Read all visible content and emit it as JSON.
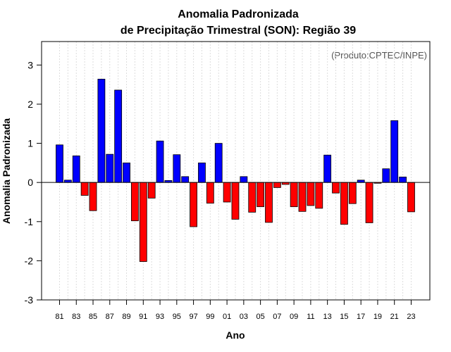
{
  "chart_data": {
    "type": "bar",
    "title": "Anomalia Padronizada",
    "subtitle": "de Precipitação Trimestral (SON): Região 39",
    "xlabel": "Ano",
    "ylabel": "Anomalia Padronizada",
    "annotation": "(Produto:CPTEC/INPE)",
    "ylim": [
      -3,
      3.6
    ],
    "yticks": [
      -3,
      -2,
      -1,
      0,
      1,
      2,
      3
    ],
    "xtick_labels": [
      "81",
      "83",
      "85",
      "87",
      "89",
      "91",
      "93",
      "95",
      "97",
      "99",
      "01",
      "03",
      "05",
      "07",
      "09",
      "11",
      "13",
      "15",
      "17",
      "19",
      "21",
      "23"
    ],
    "positive_color": "#0000ff",
    "negative_color": "#ff0000",
    "categories": [
      "1981",
      "1982",
      "1983",
      "1984",
      "1985",
      "1986",
      "1987",
      "1988",
      "1989",
      "1990",
      "1991",
      "1992",
      "1993",
      "1994",
      "1995",
      "1996",
      "1997",
      "1998",
      "1999",
      "2000",
      "2001",
      "2002",
      "2003",
      "2004",
      "2005",
      "2006",
      "2007",
      "2008",
      "2009",
      "2010",
      "2011",
      "2012",
      "2013",
      "2014",
      "2015",
      "2016",
      "2017",
      "2018",
      "2019",
      "2020",
      "2021",
      "2022",
      "2023"
    ],
    "values": [
      0.96,
      0.06,
      0.68,
      -0.33,
      -0.72,
      2.64,
      0.72,
      2.36,
      0.5,
      -0.98,
      -2.02,
      -0.4,
      1.06,
      0.05,
      0.71,
      0.15,
      -1.13,
      0.5,
      -0.53,
      1.0,
      -0.5,
      -0.94,
      0.15,
      -0.76,
      -0.62,
      -1.02,
      -0.13,
      -0.05,
      -0.62,
      -0.74,
      -0.59,
      -0.66,
      0.7,
      -0.27,
      -1.07,
      -0.54,
      0.06,
      -1.03,
      -0.02,
      0.35,
      1.58,
      0.14,
      -0.75
    ]
  }
}
